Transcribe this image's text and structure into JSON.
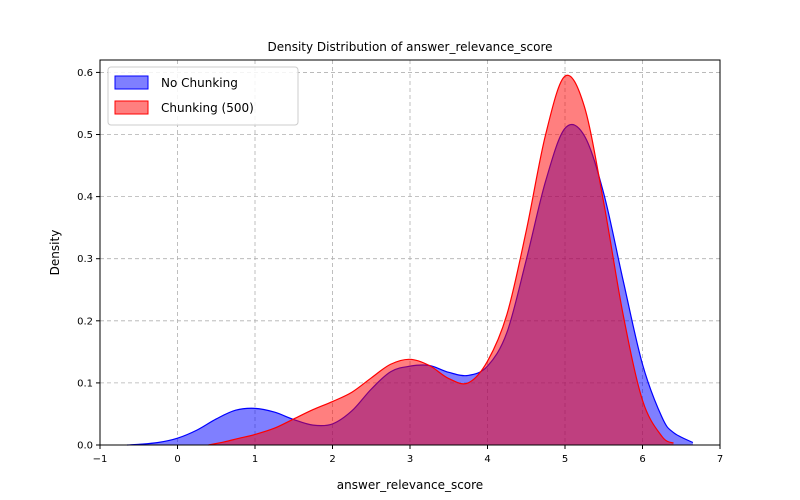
{
  "chart_data": {
    "type": "area",
    "title": "Density Distribution of answer_relevance_score",
    "xlabel": "answer_relevance_score",
    "ylabel": "Density",
    "xlim": [
      -1,
      7
    ],
    "ylim": [
      0,
      0.62
    ],
    "xticks": [
      -1,
      0,
      1,
      2,
      3,
      4,
      5,
      6,
      7
    ],
    "xtick_labels": [
      "−1",
      "0",
      "1",
      "2",
      "3",
      "4",
      "5",
      "6",
      "7"
    ],
    "yticks": [
      0.0,
      0.1,
      0.2,
      0.3,
      0.4,
      0.5,
      0.6
    ],
    "ytick_labels": [
      "0.0",
      "0.1",
      "0.2",
      "0.3",
      "0.4",
      "0.5",
      "0.6"
    ],
    "grid": true,
    "legend_position": "upper-left",
    "series": [
      {
        "name": "No Chunking",
        "fill_color": "#0000ff",
        "line_color": "#0000ff",
        "fill_opacity": 0.5,
        "x": [
          -0.65,
          -0.5,
          -0.25,
          0.0,
          0.25,
          0.5,
          0.75,
          1.0,
          1.25,
          1.5,
          1.75,
          2.0,
          2.25,
          2.5,
          2.75,
          3.0,
          3.25,
          3.5,
          3.75,
          4.0,
          4.25,
          4.5,
          4.75,
          5.0,
          5.25,
          5.5,
          5.75,
          6.0,
          6.25,
          6.4,
          6.65
        ],
        "y": [
          0.0,
          0.001,
          0.004,
          0.011,
          0.024,
          0.042,
          0.056,
          0.059,
          0.053,
          0.041,
          0.032,
          0.034,
          0.055,
          0.09,
          0.118,
          0.127,
          0.128,
          0.117,
          0.112,
          0.127,
          0.181,
          0.298,
          0.425,
          0.51,
          0.498,
          0.405,
          0.265,
          0.13,
          0.045,
          0.02,
          0.004
        ]
      },
      {
        "name": "Chunking (500)",
        "fill_color": "#ff0000",
        "line_color": "#ff0000",
        "fill_opacity": 0.5,
        "x": [
          0.4,
          0.6,
          0.8,
          1.0,
          1.25,
          1.5,
          1.75,
          2.0,
          2.25,
          2.5,
          2.75,
          3.0,
          3.25,
          3.5,
          3.75,
          4.0,
          4.25,
          4.5,
          4.75,
          5.0,
          5.25,
          5.5,
          5.75,
          6.0,
          6.25,
          6.4
        ],
        "y": [
          0.0,
          0.005,
          0.011,
          0.017,
          0.027,
          0.042,
          0.057,
          0.07,
          0.085,
          0.108,
          0.13,
          0.138,
          0.128,
          0.107,
          0.1,
          0.135,
          0.21,
          0.345,
          0.5,
          0.594,
          0.545,
          0.39,
          0.21,
          0.072,
          0.014,
          0.003
        ]
      }
    ]
  }
}
